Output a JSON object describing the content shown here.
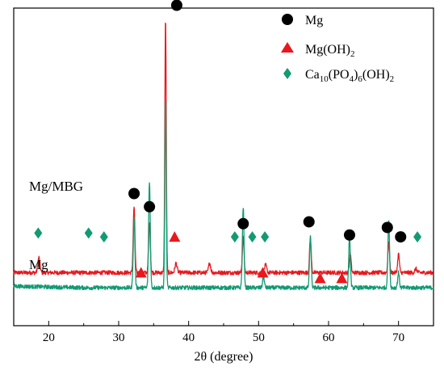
{
  "chart_data": {
    "type": "line",
    "xlabel": "2θ (degree)",
    "xlim": [
      15,
      75
    ],
    "x_ticks": [
      20,
      30,
      40,
      50,
      60,
      70
    ],
    "y_ticks_shown": false,
    "colors": {
      "mgmbg": "#e8181e",
      "mg": "#129a72",
      "mg_marker": "#000000",
      "mgoh2_marker": "#e8181e",
      "ha_marker": "#129a72"
    },
    "series": [
      {
        "name": "Mg/MBG",
        "baseline": 0.8,
        "peaks": [
          {
            "x": 18.6,
            "h": 0.8,
            "w": 0.15
          },
          {
            "x": 32.2,
            "h": 3.5,
            "w": 0.12
          },
          {
            "x": 34.4,
            "h": 2.7,
            "w": 0.12
          },
          {
            "x": 36.7,
            "h": 13.5,
            "w": 0.1
          },
          {
            "x": 38.2,
            "h": 0.5,
            "w": 0.15
          },
          {
            "x": 43.0,
            "h": 0.5,
            "w": 0.15
          },
          {
            "x": 47.8,
            "h": 1.9,
            "w": 0.12
          },
          {
            "x": 51.0,
            "h": 0.4,
            "w": 0.15
          },
          {
            "x": 57.4,
            "h": 1.8,
            "w": 0.12
          },
          {
            "x": 63.1,
            "h": 1.0,
            "w": 0.12
          },
          {
            "x": 68.6,
            "h": 1.6,
            "w": 0.12
          },
          {
            "x": 70.0,
            "h": 1.0,
            "w": 0.12
          },
          {
            "x": 72.5,
            "h": 0.2,
            "w": 0.15
          }
        ]
      },
      {
        "name": "Mg",
        "baseline": 0.0,
        "peaks": [
          {
            "x": 32.2,
            "h": 3.7,
            "w": 0.12
          },
          {
            "x": 34.4,
            "h": 5.6,
            "w": 0.12
          },
          {
            "x": 36.7,
            "h": 10.0,
            "w": 0.1
          },
          {
            "x": 47.8,
            "h": 4.3,
            "w": 0.12
          },
          {
            "x": 50.7,
            "h": 0.6,
            "w": 0.12
          },
          {
            "x": 57.4,
            "h": 2.7,
            "w": 0.12
          },
          {
            "x": 63.0,
            "h": 2.7,
            "w": 0.12
          },
          {
            "x": 68.6,
            "h": 3.6,
            "w": 0.12
          },
          {
            "x": 70.0,
            "h": 0.8,
            "w": 0.12
          }
        ]
      }
    ],
    "markers": [
      {
        "type": "Mg",
        "x": 38.3,
        "y": 15.0
      },
      {
        "type": "Mg",
        "x": 32.2,
        "y": 5.0
      },
      {
        "type": "Mg",
        "x": 34.4,
        "y": 4.3
      },
      {
        "type": "Mg",
        "x": 47.8,
        "y": 3.4
      },
      {
        "type": "Mg",
        "x": 57.2,
        "y": 3.5
      },
      {
        "type": "Mg",
        "x": 63.0,
        "y": 2.8
      },
      {
        "type": "Mg",
        "x": 68.4,
        "y": 3.2
      },
      {
        "type": "Mg",
        "x": 70.3,
        "y": 2.7
      },
      {
        "type": "Mg(OH)2",
        "x": 38.0,
        "y": 2.7
      },
      {
        "type": "Mg(OH)2",
        "x": 33.2,
        "y": 0.8
      },
      {
        "type": "Mg(OH)2",
        "x": 50.6,
        "y": 0.8
      },
      {
        "type": "Mg(OH)2",
        "x": 58.8,
        "y": 0.5
      },
      {
        "type": "Mg(OH)2",
        "x": 61.9,
        "y": 0.5
      },
      {
        "type": "HA",
        "x": 18.5,
        "y": 2.9
      },
      {
        "type": "HA",
        "x": 25.7,
        "y": 2.9
      },
      {
        "type": "HA",
        "x": 27.9,
        "y": 2.7
      },
      {
        "type": "HA",
        "x": 46.6,
        "y": 2.7
      },
      {
        "type": "HA",
        "x": 49.1,
        "y": 2.7
      },
      {
        "type": "HA",
        "x": 50.9,
        "y": 2.7
      },
      {
        "type": "HA",
        "x": 72.7,
        "y": 2.7
      }
    ],
    "legend": {
      "placement": "top-right",
      "entries": [
        {
          "marker": "circle",
          "label_main": "Mg",
          "label": "Mg"
        },
        {
          "marker": "triangle",
          "label": "Mg(OH)2"
        },
        {
          "marker": "diamond",
          "label": "Ca10(PO4)6(OH)2"
        }
      ]
    },
    "sample_labels": [
      "Mg/MBG",
      "Mg"
    ]
  }
}
